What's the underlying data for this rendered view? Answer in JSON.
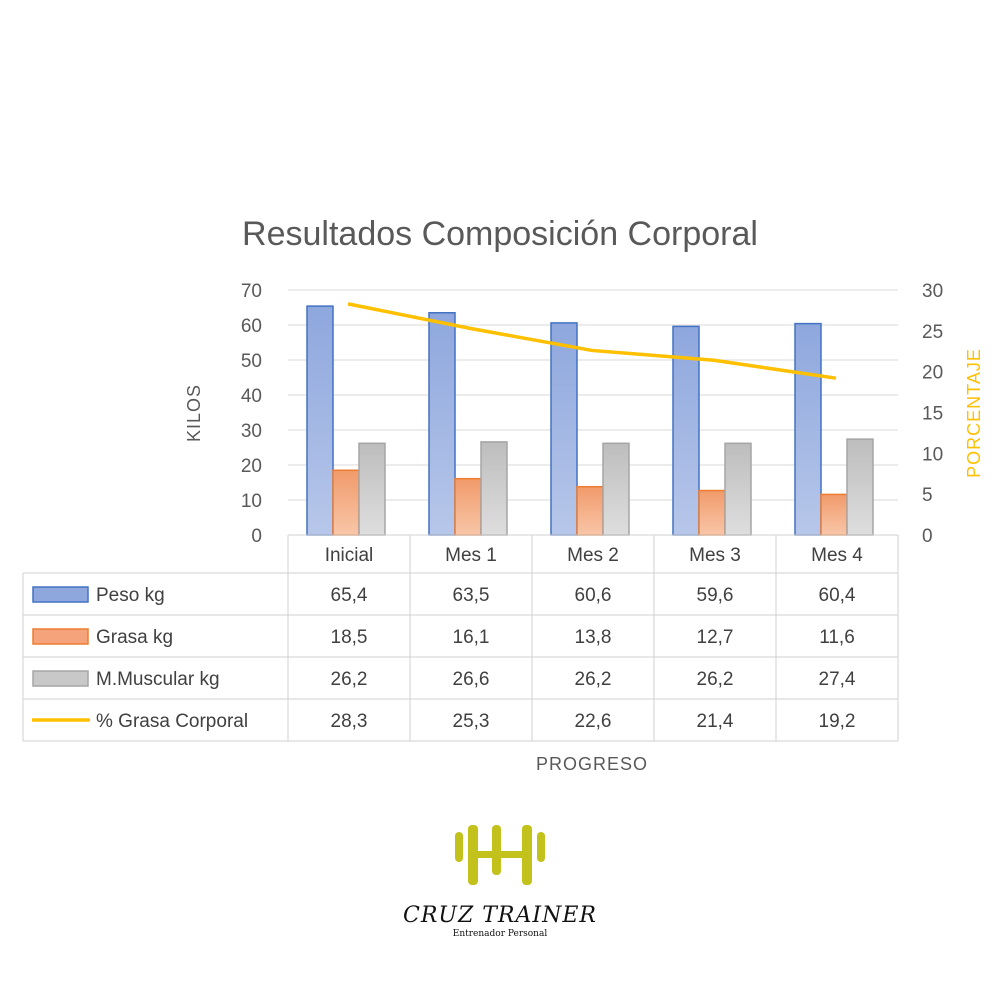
{
  "chart_data": {
    "type": "bar",
    "title": "Resultados Composición Corporal",
    "xlabel": "PROGRESO",
    "ylabel": "KILOS",
    "y2label": "PORCENTAJE",
    "ylim": [
      0,
      70
    ],
    "y2lim": [
      0,
      30
    ],
    "yticks": [
      "0",
      "10",
      "20",
      "30",
      "40",
      "50",
      "60",
      "70"
    ],
    "y2ticks": [
      "0",
      "5",
      "10",
      "15",
      "20",
      "25",
      "30"
    ],
    "grid": true,
    "legend": "data-table",
    "categories": [
      "Inicial",
      "Mes 1",
      "Mes 2",
      "Mes 3",
      "Mes 4"
    ],
    "series": [
      {
        "name": "Peso kg",
        "type": "bar",
        "axis": "left",
        "color": "#4472c4",
        "values": [
          65.4,
          63.5,
          60.6,
          59.6,
          60.4
        ],
        "labels": [
          "65,4",
          "63,5",
          "60,6",
          "59,6",
          "60,4"
        ]
      },
      {
        "name": "Grasa kg",
        "type": "bar",
        "axis": "left",
        "color": "#ed7d31",
        "values": [
          18.5,
          16.1,
          13.8,
          12.7,
          11.6
        ],
        "labels": [
          "18,5",
          "16,1",
          "13,8",
          "12,7",
          "11,6"
        ]
      },
      {
        "name": "M.Muscular kg",
        "type": "bar",
        "axis": "left",
        "color": "#a5a5a5",
        "values": [
          26.2,
          26.6,
          26.2,
          26.2,
          27.4
        ],
        "labels": [
          "26,2",
          "26,6",
          "26,2",
          "26,2",
          "27,4"
        ]
      },
      {
        "name": "% Grasa Corporal",
        "type": "line",
        "axis": "right",
        "color": "#ffc000",
        "values": [
          28.3,
          25.3,
          22.6,
          21.4,
          19.2
        ],
        "labels": [
          "28,3",
          "25,3",
          "22,6",
          "21,4",
          "19,2"
        ]
      }
    ]
  },
  "logo": {
    "name": "CRUZ TRAINER",
    "tagline": "Entrenador Personal",
    "color": "#c3c21c"
  }
}
